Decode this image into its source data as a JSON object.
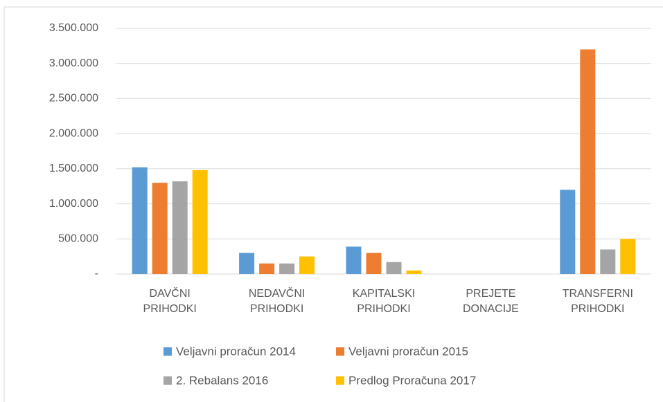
{
  "chart_data": {
    "type": "bar",
    "categories": [
      "DAVČNI PRIHODKI",
      "NEDAVČNI PRIHODKI",
      "KAPITALSKI PRIHODKI",
      "PREJETE DONACIJE",
      "TRANSFERNI PRIHODKI"
    ],
    "series": [
      {
        "name": "Veljavni proračun 2014",
        "color": "#5b9bd5",
        "values": [
          1520000,
          300000,
          390000,
          0,
          1200000
        ]
      },
      {
        "name": "Veljavni proračun 2015",
        "color": "#ed7d31",
        "values": [
          1300000,
          150000,
          300000,
          0,
          3200000
        ]
      },
      {
        "name": "2. Rebalans 2016",
        "color": "#a5a5a5",
        "values": [
          1320000,
          150000,
          170000,
          0,
          350000
        ]
      },
      {
        "name": "Predlog Proračuna 2017",
        "color": "#ffc000",
        "values": [
          1480000,
          250000,
          50000,
          0,
          500000
        ]
      }
    ],
    "ylim": [
      0,
      3500000
    ],
    "yticks": [
      {
        "value": 0,
        "label": "-"
      },
      {
        "value": 500000,
        "label": "500.000"
      },
      {
        "value": 1000000,
        "label": "1.000.000"
      },
      {
        "value": 1500000,
        "label": "1.500.000"
      },
      {
        "value": 2000000,
        "label": "2.000.000"
      },
      {
        "value": 2500000,
        "label": "2.500.000"
      },
      {
        "value": 3000000,
        "label": "3.000.000"
      },
      {
        "value": 3500000,
        "label": "3.500.000"
      }
    ],
    "grid": true,
    "legend": "bottom"
  }
}
